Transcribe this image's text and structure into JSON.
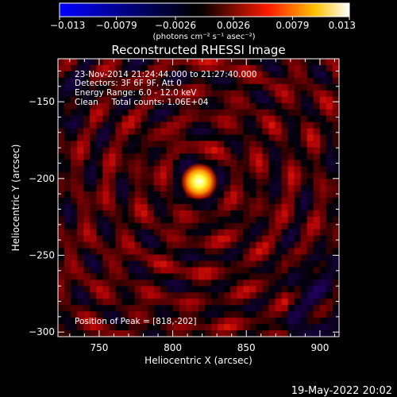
{
  "chart_data": {
    "type": "heatmap",
    "title": "Reconstructed RHESSI Image",
    "xlabel": "Heliocentric X (arcsec)",
    "ylabel": "Heliocentric Y (arcsec)",
    "xlim": [
      722,
      913
    ],
    "ylim": [
      -303,
      -122
    ],
    "x_ticks": [
      750,
      800,
      850,
      900
    ],
    "x_tick_labels": [
      "750",
      "800",
      "850",
      "900"
    ],
    "y_ticks": [
      -150,
      -200,
      -250,
      -300
    ],
    "y_tick_labels": [
      "−150",
      "−200",
      "−250",
      "−300"
    ],
    "colorbar": {
      "min": -0.013,
      "max": 0.013,
      "ticks": [
        -0.013,
        -0.0079,
        -0.0026,
        0.0026,
        0.0079,
        0.013
      ],
      "tick_labels": [
        "−0.013",
        "−0.0079",
        "−0.0026",
        "0.0026",
        "0.0079",
        "0.013"
      ],
      "unit_label": "(photons cm⁻² s⁻¹ asec⁻²)"
    },
    "peak": {
      "x": 818,
      "y": -202
    },
    "annotations": [
      "23-Nov-2014 21:24:44.000 to 21:27:40.000",
      "Detectors: 3F 6F 9F, Att 0",
      "Energy Range: 6.0 - 12.0 keV",
      "Clean     Total counts: 1.06E+04"
    ],
    "peak_label": "Position of Peak = [818,-202]",
    "grid": false,
    "colors": {
      "background": "#000000",
      "colormap": [
        "#0000ff",
        "#000000",
        "#ff0000",
        "#ffff00",
        "#ffffff"
      ]
    }
  },
  "footer": {
    "date": "19-May-2022 20:02"
  }
}
